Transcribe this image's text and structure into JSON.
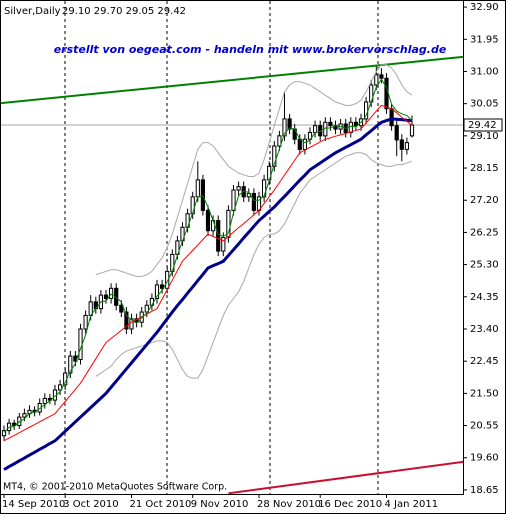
{
  "chart_data": {
    "type": "candlestick",
    "title": "Silver,Daily",
    "ohlc_text": "29.10 29.70 29.05 29.42",
    "watermark": "erstellt von oegeat.com - handeln mit www.brokervorschlag.de",
    "copyright": "MT4, © 2001-2010 MetaQuotes Software Corp.",
    "categories": [
      "14 Sep 2010",
      null,
      null,
      null,
      null,
      null,
      null,
      null,
      null,
      null,
      null,
      null,
      "3 Oct 2010",
      null,
      null,
      null,
      null,
      null,
      null,
      null,
      null,
      null,
      null,
      null,
      null,
      "21 Oct 2010",
      null,
      null,
      null,
      null,
      null,
      null,
      null,
      null,
      null,
      null,
      null,
      "9 Nov 2010",
      null,
      null,
      null,
      null,
      null,
      null,
      null,
      null,
      null,
      null,
      null,
      null,
      "28 Nov 2010",
      null,
      null,
      null,
      null,
      null,
      null,
      null,
      null,
      null,
      null,
      null,
      "16 Dec 2010",
      null,
      null,
      null,
      null,
      null,
      null,
      null,
      null,
      null,
      null,
      null,
      null,
      "4 Jan 2011",
      null,
      null,
      null,
      null,
      null
    ],
    "open": [
      20.25,
      20.4,
      20.62,
      20.55,
      20.8,
      20.9,
      21.0,
      20.95,
      21.2,
      21.35,
      21.3,
      21.6,
      21.75,
      22.1,
      22.6,
      22.5,
      23.4,
      23.8,
      24.2,
      24.0,
      24.4,
      24.3,
      24.6,
      24.1,
      23.9,
      23.4,
      23.7,
      23.6,
      23.9,
      24.1,
      24.3,
      24.7,
      24.6,
      25.1,
      25.6,
      26.0,
      26.4,
      26.8,
      27.3,
      27.8,
      26.9,
      26.3,
      26.6,
      25.7,
      26.1,
      26.9,
      27.5,
      27.6,
      27.3,
      27.4,
      26.9,
      27.3,
      27.8,
      28.2,
      28.8,
      29.1,
      29.6,
      29.3,
      29.0,
      28.7,
      29.0,
      29.2,
      29.4,
      29.1,
      29.5,
      29.4,
      29.3,
      29.45,
      29.2,
      29.5,
      29.4,
      29.6,
      30.1,
      30.6,
      30.9,
      30.8,
      29.9,
      29.4,
      28.98,
      28.7,
      29.1
    ],
    "high": [
      20.55,
      20.75,
      20.72,
      20.92,
      21.05,
      21.15,
      21.12,
      21.35,
      21.5,
      21.48,
      21.75,
      21.9,
      22.25,
      22.75,
      22.75,
      23.55,
      23.95,
      24.4,
      24.35,
      24.55,
      24.55,
      24.75,
      24.75,
      24.25,
      24.05,
      23.85,
      23.85,
      24.05,
      24.25,
      24.45,
      24.85,
      24.85,
      25.25,
      25.75,
      26.15,
      26.55,
      26.95,
      27.45,
      28.35,
      27.95,
      27.05,
      26.75,
      26.75,
      26.25,
      27.05,
      27.65,
      27.75,
      27.75,
      27.55,
      27.55,
      27.45,
      27.95,
      28.35,
      28.95,
      29.25,
      30.4,
      29.75,
      29.45,
      29.15,
      29.15,
      29.35,
      29.55,
      29.55,
      29.65,
      29.65,
      29.55,
      29.6,
      29.6,
      29.65,
      29.65,
      29.75,
      30.25,
      30.75,
      31.15,
      31.1,
      30.95,
      30.05,
      29.55,
      29.15,
      29.05,
      29.7
    ],
    "low": [
      20.1,
      20.28,
      20.42,
      20.45,
      20.68,
      20.78,
      20.82,
      20.85,
      21.05,
      21.18,
      21.15,
      21.45,
      21.6,
      21.95,
      22.3,
      22.35,
      23.25,
      23.65,
      23.85,
      23.85,
      24.15,
      24.15,
      23.95,
      23.75,
      23.25,
      23.25,
      23.45,
      23.45,
      23.75,
      23.95,
      24.15,
      24.45,
      24.45,
      24.95,
      25.45,
      25.85,
      26.25,
      26.65,
      27.15,
      26.75,
      26.15,
      26.15,
      25.55,
      25.55,
      25.95,
      26.75,
      27.35,
      27.15,
      27.15,
      26.75,
      26.75,
      27.15,
      27.65,
      28.05,
      28.65,
      28.95,
      29.15,
      28.85,
      28.55,
      28.55,
      28.85,
      29.05,
      28.95,
      28.95,
      29.25,
      29.15,
      29.15,
      29.05,
      29.05,
      29.25,
      29.25,
      29.45,
      29.95,
      30.45,
      30.65,
      29.75,
      29.25,
      28.5,
      28.35,
      28.55,
      29.05
    ],
    "close": [
      20.4,
      20.62,
      20.55,
      20.8,
      20.9,
      21.0,
      20.95,
      21.2,
      21.35,
      21.3,
      21.6,
      21.75,
      22.1,
      22.6,
      22.45,
      23.4,
      23.8,
      24.2,
      24.0,
      24.4,
      24.3,
      24.6,
      24.1,
      23.9,
      23.4,
      23.7,
      23.6,
      23.9,
      24.1,
      24.3,
      24.7,
      24.6,
      25.1,
      25.6,
      26.0,
      26.4,
      26.8,
      27.3,
      27.8,
      26.9,
      26.3,
      26.6,
      25.7,
      26.1,
      26.9,
      27.5,
      27.6,
      27.3,
      27.4,
      26.9,
      27.3,
      27.8,
      28.2,
      28.8,
      29.1,
      29.6,
      29.3,
      29.0,
      28.7,
      29.0,
      29.2,
      29.4,
      29.1,
      29.5,
      29.4,
      29.3,
      29.45,
      29.2,
      29.5,
      29.4,
      29.6,
      30.1,
      30.6,
      30.9,
      30.8,
      29.9,
      29.4,
      28.98,
      28.7,
      28.9,
      29.42
    ],
    "up_color": "#ffffff",
    "down_color": "#000000",
    "wick_color": "#000000",
    "indicators": [
      {
        "color": "#a9a9a9",
        "width": 1,
        "values": [
          null,
          null,
          null,
          null,
          null,
          null,
          null,
          null,
          null,
          null,
          null,
          null,
          null,
          null,
          null,
          null,
          null,
          null,
          25.0,
          25.05,
          25.1,
          25.15,
          25.15,
          25.1,
          25.05,
          25.0,
          24.95,
          24.95,
          25.0,
          25.1,
          25.3,
          25.5,
          25.8,
          26.2,
          26.7,
          27.2,
          27.7,
          28.2,
          28.7,
          28.9,
          28.9,
          28.8,
          28.6,
          28.4,
          28.2,
          28.1,
          28.0,
          27.95,
          27.9,
          27.9,
          28.0,
          28.4,
          28.9,
          29.4,
          29.9,
          30.4,
          30.6,
          30.7,
          30.7,
          30.65,
          30.6,
          30.5,
          30.4,
          30.3,
          30.2,
          30.1,
          30.05,
          30.0,
          30.0,
          30.05,
          30.15,
          30.4,
          30.7,
          31.0,
          31.2,
          31.2,
          31.1,
          30.9,
          30.6,
          30.4,
          30.3
        ]
      },
      {
        "color": "#a9a9a9",
        "width": 1,
        "values": [
          null,
          null,
          null,
          null,
          null,
          null,
          null,
          null,
          null,
          null,
          null,
          null,
          null,
          null,
          null,
          null,
          null,
          null,
          22.0,
          22.1,
          22.2,
          22.3,
          22.5,
          22.65,
          22.75,
          22.8,
          22.85,
          22.9,
          22.95,
          23.0,
          23.05,
          23.05,
          23.0,
          22.8,
          22.5,
          22.2,
          22.0,
          21.95,
          21.95,
          22.2,
          22.6,
          23.0,
          23.4,
          23.8,
          24.1,
          24.3,
          24.5,
          24.8,
          25.2,
          25.6,
          25.9,
          26.1,
          26.2,
          26.2,
          26.3,
          26.5,
          26.8,
          27.1,
          27.4,
          27.6,
          27.8,
          27.9,
          28.0,
          28.1,
          28.2,
          28.3,
          28.4,
          28.5,
          28.55,
          28.6,
          28.6,
          28.55,
          28.4,
          28.3,
          28.25,
          28.2,
          28.2,
          28.25,
          28.25,
          28.3,
          28.35
        ]
      },
      {
        "color": "#00008b",
        "width": 3,
        "values": [
          19.25,
          19.34,
          19.42,
          19.51,
          19.59,
          19.68,
          19.76,
          19.85,
          19.93,
          20.02,
          20.1,
          20.24,
          20.38,
          20.52,
          20.66,
          20.8,
          20.94,
          21.08,
          21.22,
          21.36,
          21.5,
          21.68,
          21.86,
          22.04,
          22.22,
          22.4,
          22.58,
          22.76,
          22.94,
          23.12,
          23.3,
          23.5,
          23.7,
          23.9,
          24.09,
          24.27,
          24.46,
          24.64,
          24.83,
          25.01,
          25.2,
          25.27,
          25.33,
          25.4,
          25.57,
          25.74,
          25.91,
          26.09,
          26.26,
          26.43,
          26.6,
          26.73,
          26.87,
          27.0,
          27.16,
          27.31,
          27.47,
          27.63,
          27.79,
          27.94,
          28.1,
          28.2,
          28.3,
          28.4,
          28.5,
          28.6,
          28.68,
          28.76,
          28.84,
          28.92,
          29.0,
          29.13,
          29.25,
          29.38,
          29.5,
          29.55,
          29.6,
          29.59,
          29.58,
          29.56,
          29.55
        ]
      },
      {
        "color": "#ff0000",
        "width": 1,
        "values": [
          20.1,
          20.18,
          20.26,
          20.34,
          20.42,
          20.5,
          20.58,
          20.66,
          20.74,
          20.82,
          20.9,
          21.08,
          21.26,
          21.44,
          21.62,
          21.8,
          22.04,
          22.28,
          22.52,
          22.76,
          23.0,
          23.12,
          23.24,
          23.36,
          23.48,
          23.6,
          23.68,
          23.76,
          23.84,
          23.92,
          24.0,
          24.28,
          24.56,
          24.84,
          25.12,
          25.4,
          25.56,
          25.72,
          25.88,
          26.04,
          26.2,
          26.13,
          26.07,
          26.0,
          26.13,
          26.26,
          26.39,
          26.51,
          26.64,
          26.77,
          26.9,
          27.1,
          27.3,
          27.5,
          27.72,
          27.94,
          28.16,
          28.38,
          28.6,
          28.68,
          28.76,
          28.84,
          28.92,
          29.0,
          29.04,
          29.09,
          29.13,
          29.17,
          29.21,
          29.26,
          29.3,
          29.48,
          29.65,
          29.83,
          30.0,
          29.95,
          29.9,
          29.78,
          29.65,
          29.53,
          29.4
        ]
      },
      {
        "color": "#008000",
        "width": 1,
        "values": [
          20.35,
          20.5,
          20.52,
          20.66,
          20.75,
          20.9,
          20.95,
          21.05,
          21.17,
          21.28,
          21.42,
          21.55,
          21.82,
          22.15,
          22.38,
          22.82,
          23.22,
          23.8,
          24.0,
          24.2,
          24.23,
          24.43,
          24.33,
          24.2,
          23.8,
          23.67,
          23.57,
          23.73,
          23.87,
          24.1,
          24.37,
          24.53,
          24.8,
          25.1,
          25.57,
          26.0,
          26.4,
          26.83,
          27.3,
          27.33,
          27.0,
          26.6,
          26.2,
          26.13,
          26.23,
          26.83,
          27.33,
          27.47,
          27.43,
          27.2,
          27.2,
          27.33,
          27.77,
          28.27,
          28.7,
          29.17,
          29.33,
          29.3,
          29.0,
          28.9,
          28.97,
          29.2,
          29.23,
          29.33,
          29.33,
          29.4,
          29.38,
          29.32,
          29.38,
          29.37,
          29.5,
          29.7,
          30.1,
          30.53,
          30.77,
          30.53,
          30.03,
          29.83,
          29.75,
          29.7,
          29.55
        ]
      }
    ],
    "trendlines": [
      {
        "color": "#008000",
        "x": [
          -1,
          90
        ],
        "values": [
          30.06,
          31.43
        ]
      },
      {
        "color": "#c8102e",
        "x": [
          44,
          90
        ],
        "values": [
          18.55,
          19.48
        ]
      }
    ],
    "price_line_color": "#a9a9a9",
    "ylim": [
      18.53,
      33.05
    ],
    "yticks": [
      18.65,
      {
        "value": 19.6,
        "label": "19.60"
      },
      20.55,
      {
        "value": 21.5,
        "label": "21.50"
      },
      22.45,
      {
        "value": 23.4,
        "label": "23.40"
      },
      24.35,
      {
        "value": 25.3,
        "label": "25.30"
      },
      26.25,
      {
        "value": 27.2,
        "label": "27.20"
      },
      28.15,
      {
        "value": 29.1,
        "label": "29.10"
      },
      30.05,
      {
        "value": 31,
        "label": "31.00"
      },
      31.95,
      {
        "value": 32.9,
        "label": "32.90"
      }
    ]
  }
}
